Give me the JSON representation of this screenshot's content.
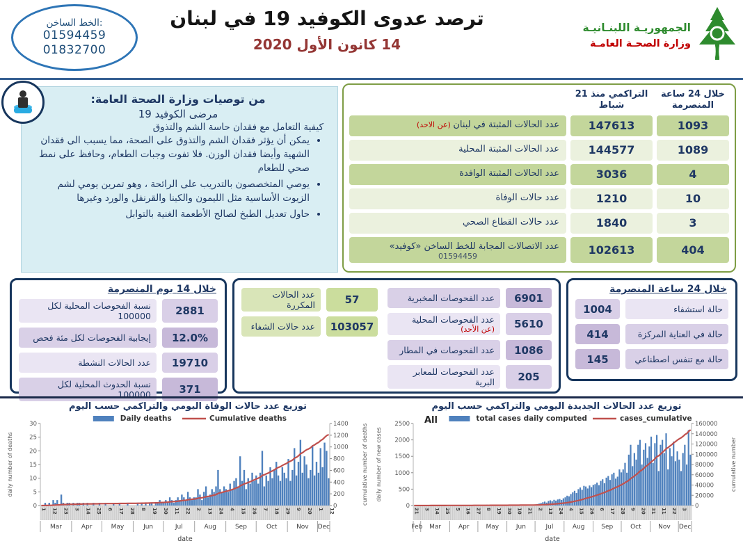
{
  "header": {
    "hotline": {
      "title": "الخط الساخن:",
      "phone1": "01594459",
      "phone2": "01832700"
    },
    "title": "ترصد عدوى الكوفيد 19 في لبنان",
    "date": "14 كانون الأول 2020",
    "ministry": {
      "line1": "الجمهوريـة اللبنـانيـة",
      "line2": "وزارة الصحـة العامـة"
    }
  },
  "recommendations": {
    "heading": "من توصيات وزارة الصحة العامة:",
    "subheading": "مرضى الكوفيد 19",
    "intro": "كيفية التعامل مع فقدان حاسة الشم والتذوق",
    "bullets": [
      "يمكن أن يؤثر فقدان الشم والتذوق على الصحة، مما يسبب الى فقدان الشهية وأيضا فقدان الوزن. فلا تفوت وجبات الطعام، وحافظ على نمط صحي للطعام",
      "يوصي المتخصصون بالتدريب على الرائحة ، وهو تمرين يومي لشم الزيوت الأساسية مثل الليمون والكينا والقرنفل والورد وغيرها",
      "حاول تعديل الطبخ لصالح الأطعمة الغنية بالتوابل"
    ]
  },
  "stats_table": {
    "col_daily": "خلال 24 ساعة المنصرمة",
    "col_cum": "التراكمي منذ 21 شباط",
    "rows": [
      {
        "label": "عدد الحالات المثبتة في لبنان",
        "note": "(عن الاحد)",
        "cumulative": "147613",
        "daily": "1093",
        "shade": "d"
      },
      {
        "label": "عدد الحالات المثبتة المحلية",
        "cumulative": "144577",
        "daily": "1089",
        "shade": "l"
      },
      {
        "label": "عدد الحالات المثبتة الوافدة",
        "cumulative": "3036",
        "daily": "4",
        "shade": "d"
      },
      {
        "label": "عدد حالات الوفاة",
        "cumulative": "1210",
        "daily": "10",
        "shade": "l"
      },
      {
        "label": "عدد حالات القطاع الصحي",
        "cumulative": "1840",
        "daily": "3",
        "shade": "l"
      },
      {
        "label": "عدد الاتصالات المجابة للخط الساخن «كوفيد»",
        "sub": "01594459",
        "cumulative": "102613",
        "daily": "404",
        "shade": "d"
      }
    ]
  },
  "boxes": {
    "last14": {
      "title": "خلال 14 يوم المنصرمة",
      "rows": [
        {
          "value": "2881",
          "label": "نسبة الفحوصات المحلية لكل 100000",
          "shade": "l"
        },
        {
          "value": "12.0%",
          "label": "إيجابية الفحوصات لكل مئة فحص",
          "shade": "d"
        },
        {
          "value": "19710",
          "label": "عدد الحالات النشطة",
          "shade": "l"
        },
        {
          "value": "371",
          "label": "نسبة الحدوث المحلية لكل 100000",
          "shade": "d"
        }
      ]
    },
    "mid": {
      "green_rows": [
        {
          "value": "57",
          "label": "عدد الحالات المكررة"
        },
        {
          "value": "103057",
          "label": "عدد حالات الشفاء"
        }
      ],
      "test_rows": [
        {
          "value": "6901",
          "label": "عدد الفحوصات المخبرية",
          "shade": "d"
        },
        {
          "value": "5610",
          "label": "عدد الفحوصات المحلية",
          "note": "(عن الأحد)",
          "shade": "l"
        },
        {
          "value": "1086",
          "label": "عدد الفحوصات في المطار",
          "shade": "d"
        },
        {
          "value": "205",
          "label": "عدد الفحوصات للمعابر البرية",
          "shade": "l"
        }
      ]
    },
    "last24": {
      "title": "خلال 24 ساعة المنصرمة",
      "rows": [
        {
          "value": "1004",
          "label": "حالة استشفاء",
          "shade": "l"
        },
        {
          "value": "414",
          "label": "حالة في العناية المركزة",
          "shade": "d"
        },
        {
          "value": "145",
          "label": "حالة مع تنفس اصطناعي",
          "shade": "d"
        }
      ]
    }
  },
  "chart_data": [
    {
      "type": "bar+line",
      "title": "توزيع عدد حالات  الوفاة اليومي والتراكمي حسب اليوم",
      "legend": [
        {
          "label": "Daily deaths",
          "type": "bar",
          "color": "#4f81bd"
        },
        {
          "label": "Cumulative deaths",
          "type": "line",
          "color": "#c0504d"
        }
      ],
      "bar_color": "#4f81bd",
      "line_color": "#c0504d",
      "y_left": {
        "label": "daily number of deaths",
        "max": 30,
        "ticks": [
          0,
          5,
          10,
          15,
          20,
          25,
          30
        ]
      },
      "y_right": {
        "label": "cumulative number of deaths",
        "max": 1400,
        "ticks": [
          0,
          200,
          400,
          600,
          800,
          1000,
          1200,
          1400
        ]
      },
      "x": {
        "axis_label": "date",
        "months": [
          "Mar",
          "Apr",
          "May",
          "Jun",
          "Jul",
          "Aug",
          "Sep",
          "Oct",
          "Nov",
          "Dec"
        ],
        "month_days": [
          31,
          30,
          31,
          30,
          31,
          31,
          30,
          31,
          30,
          12
        ],
        "total_days": 287,
        "day_tick_step": 11,
        "day_ticks": [
          "1",
          "12",
          "23",
          "3",
          "14",
          "25",
          "6",
          "17",
          "28",
          "8",
          "19",
          "30",
          "11",
          "22",
          "2",
          "13",
          "24",
          "4",
          "15",
          "26",
          "7",
          "18",
          "29",
          "9",
          "20",
          "1",
          "12"
        ]
      },
      "daily_values": [
        0,
        0,
        1,
        0,
        1,
        0,
        2,
        1,
        2,
        0,
        4,
        1,
        0,
        1,
        1,
        0,
        1,
        0,
        1,
        1,
        0,
        1,
        0,
        1,
        0,
        0,
        1,
        0,
        0,
        1,
        0,
        0,
        1,
        0,
        0,
        0,
        1,
        0,
        0,
        1,
        0,
        0,
        0,
        1,
        0,
        0,
        0,
        0,
        1,
        0,
        1,
        0,
        1,
        0,
        1,
        1,
        0,
        1,
        1,
        2,
        1,
        1,
        2,
        1,
        3,
        2,
        1,
        2,
        3,
        2,
        4,
        3,
        2,
        5,
        3,
        2,
        3,
        3,
        6,
        4,
        2,
        5,
        7,
        3,
        4,
        6,
        5,
        7,
        13,
        6,
        5,
        7,
        6,
        5,
        8,
        6,
        9,
        10,
        7,
        18,
        9,
        13,
        6,
        10,
        8,
        12,
        9,
        11,
        8,
        12,
        20,
        7,
        11,
        9,
        14,
        10,
        13,
        16,
        11,
        9,
        14,
        12,
        10,
        17,
        9,
        13,
        21,
        11,
        16,
        24,
        12,
        18,
        15,
        10,
        13,
        22,
        11,
        16,
        12,
        21,
        14,
        23,
        20,
        10
      ],
      "cumulative_final": 1210
    },
    {
      "type": "bar+line",
      "title": "توزيع عدد الحالات الجديدة اليومي والتراكمي حسب اليوم",
      "corner_label": "All",
      "legend": [
        {
          "label": "total cases daily computed",
          "type": "bar",
          "color": "#4f81bd"
        },
        {
          "label": "cases_cumulative",
          "type": "line",
          "color": "#c0504d"
        }
      ],
      "bar_color": "#4f81bd",
      "line_color": "#c0504d",
      "y_left": {
        "label": "daily number of new cases",
        "max": 2500,
        "ticks": [
          0,
          500,
          1000,
          1500,
          2000,
          2500
        ]
      },
      "y_right": {
        "label": "cumulative number",
        "max": 160000,
        "ticks": [
          0,
          20000,
          40000,
          60000,
          80000,
          100000,
          120000,
          140000,
          160000
        ]
      },
      "x": {
        "axis_label": "date",
        "months": [
          "Feb",
          "Mar",
          "Apr",
          "May",
          "Jun",
          "Jul",
          "Aug",
          "Sep",
          "Oct",
          "Nov",
          "Dec"
        ],
        "month_days": [
          8,
          31,
          30,
          31,
          30,
          31,
          31,
          30,
          31,
          30,
          14
        ],
        "total_days": 297,
        "day_tick_step": 11,
        "day_ticks": [
          "21",
          "3",
          "14",
          "25",
          "5",
          "16",
          "27",
          "8",
          "19",
          "30",
          "10",
          "21",
          "2",
          "13",
          "24",
          "4",
          "15",
          "26",
          "6",
          "17",
          "28",
          "9",
          "20",
          "31",
          "11",
          "22",
          "3"
        ]
      },
      "daily_values": [
        1,
        2,
        1,
        3,
        4,
        3,
        6,
        5,
        8,
        10,
        7,
        12,
        9,
        11,
        8,
        6,
        9,
        7,
        5,
        8,
        6,
        5,
        8,
        4,
        6,
        7,
        5,
        3,
        6,
        4,
        5,
        3,
        4,
        6,
        5,
        4,
        6,
        8,
        5,
        25,
        12,
        8,
        6,
        10,
        7,
        5,
        8,
        6,
        9,
        7,
        8,
        10,
        12,
        9,
        14,
        11,
        16,
        13,
        18,
        15,
        20,
        17,
        22,
        19,
        25,
        30,
        45,
        60,
        80,
        100,
        120,
        90,
        140,
        160,
        130,
        175,
        150,
        185,
        200,
        170,
        220,
        250,
        300,
        280,
        350,
        400,
        450,
        380,
        500,
        550,
        480,
        600,
        580,
        520,
        610,
        560,
        630,
        650,
        700,
        620,
        750,
        800,
        680,
        850,
        900,
        780,
        950,
        1000,
        820,
        880,
        1100,
        1010,
        1100,
        1300,
        1000,
        1550,
        1850,
        1200,
        1600,
        1400,
        1850,
        2000,
        1250,
        1700,
        1900,
        1450,
        1800,
        2100,
        1300,
        1900,
        2150,
        1050,
        1850,
        2000,
        1600,
        2200,
        1100,
        1750,
        1500,
        1950,
        1350,
        1650,
        1400,
        1050,
        1600,
        1850,
        1250,
        2300,
        1550
      ],
      "cumulative_final": 147613
    }
  ]
}
